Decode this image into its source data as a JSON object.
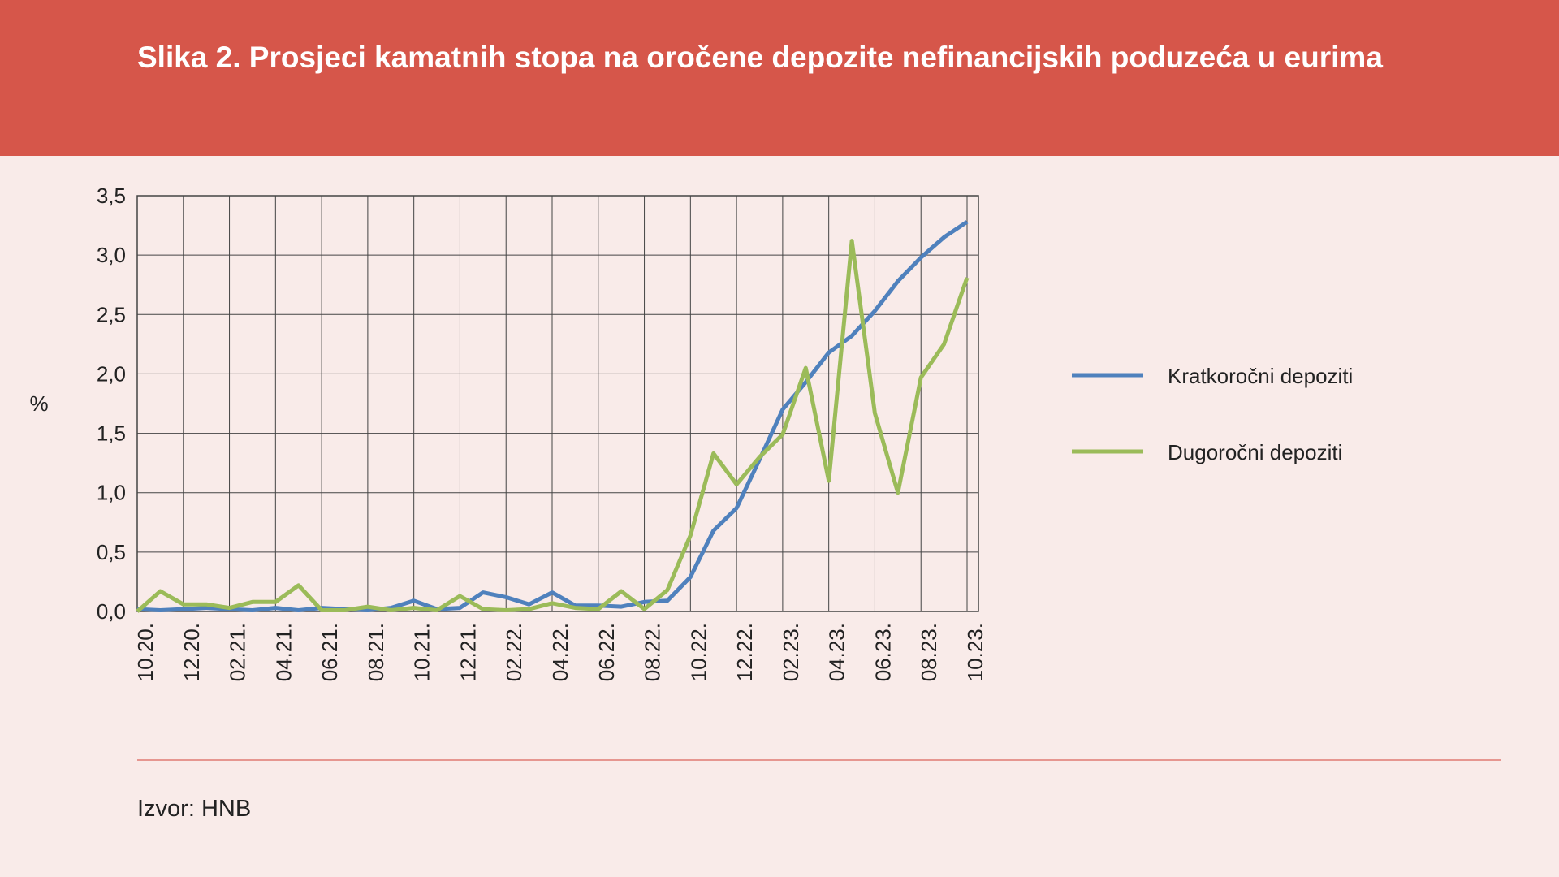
{
  "chart_data": {
    "type": "line",
    "title": "Slika 2. Prosjeci kamatnih stopa na oročene depozite nefinancijskih poduzeća u eurima",
    "ylabel": "%",
    "source": "Izvor: HNB",
    "categories": [
      "10.20.",
      null,
      "12.20.",
      null,
      "02.21.",
      null,
      "04.21.",
      null,
      "06.21.",
      null,
      "08.21.",
      null,
      "10.21.",
      null,
      "12.21.",
      null,
      "02.22.",
      null,
      "04.22.",
      null,
      "06.22.",
      null,
      "08.22.",
      null,
      "10.22.",
      null,
      "12.22.",
      null,
      "02.23.",
      null,
      "04.23.",
      null,
      "06.23.",
      null,
      "08.23.",
      null,
      "10.23."
    ],
    "series": [
      {
        "name": "Kratkoročni depoziti",
        "color": "#4f81bd",
        "values": [
          0.02,
          0.01,
          0.02,
          0.03,
          0.02,
          0.01,
          0.03,
          0.01,
          0.03,
          0.02,
          0.01,
          0.03,
          0.09,
          0.02,
          0.03,
          0.16,
          0.12,
          0.06,
          0.16,
          0.05,
          0.05,
          0.04,
          0.08,
          0.09,
          0.29,
          0.68,
          0.87,
          1.28,
          1.7,
          1.93,
          2.18,
          2.32,
          2.53,
          2.78,
          2.98,
          3.15,
          3.28
        ]
      },
      {
        "name": "Dugoročni depoziti",
        "color": "#9bbb59",
        "values": [
          0.0,
          0.17,
          0.06,
          0.06,
          0.03,
          0.08,
          0.08,
          0.22,
          0.01,
          0.01,
          0.04,
          0.01,
          0.03,
          0.01,
          0.13,
          0.02,
          0.01,
          0.02,
          0.07,
          0.03,
          0.02,
          0.17,
          0.02,
          0.18,
          0.64,
          1.33,
          1.07,
          1.3,
          1.49,
          2.05,
          1.1,
          3.12,
          1.67,
          1.0,
          1.97,
          2.25,
          2.81
        ]
      }
    ],
    "ylim": [
      0,
      3.5
    ],
    "yticks": [
      {
        "value": 0,
        "label": "0,0"
      },
      {
        "value": 0.5,
        "label": "0,5"
      },
      {
        "value": 1,
        "label": "1,0"
      },
      {
        "value": 1.5,
        "label": "1,5"
      },
      {
        "value": 2,
        "label": "2,0"
      },
      {
        "value": 2.5,
        "label": "2,5"
      },
      {
        "value": 3,
        "label": "3,0"
      },
      {
        "value": 3.5,
        "label": "3,5"
      }
    ],
    "grid": true,
    "legend": "right"
  }
}
